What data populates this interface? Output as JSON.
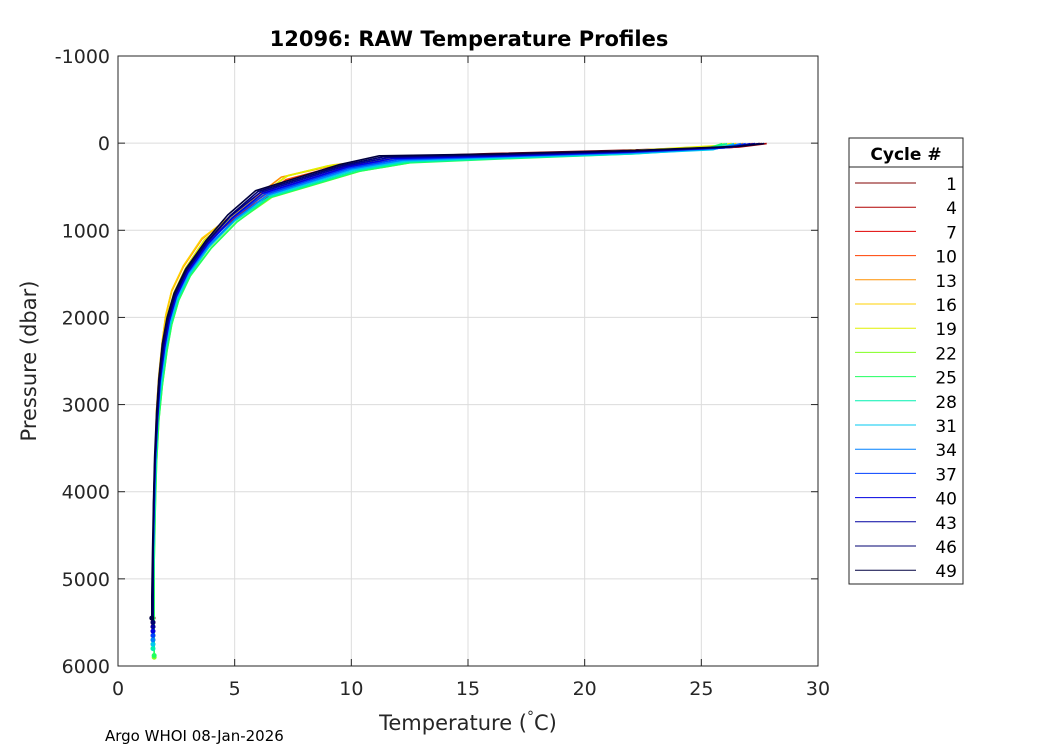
{
  "chart_data": {
    "type": "line",
    "title": "12096: RAW Temperature Profiles",
    "xlabel": "Temperature (°C)",
    "xlabel_parts": {
      "pre": "Temperature (",
      "deg": "°",
      "post": "C)"
    },
    "ylabel": "Pressure (dbar)",
    "xlim": [
      0,
      30
    ],
    "ylim": [
      -1000,
      6000
    ],
    "y_reversed": true,
    "grid": true,
    "x_ticks": [
      0,
      5,
      10,
      15,
      20,
      25,
      30
    ],
    "x_tick_labels": [
      "0",
      "5",
      "10",
      "15",
      "20",
      "25",
      "30"
    ],
    "y_ticks": [
      -1000,
      0,
      1000,
      2000,
      3000,
      4000,
      5000,
      6000
    ],
    "y_tick_labels": [
      "-1000",
      "0",
      "1000",
      "2000",
      "3000",
      "4000",
      "5000",
      "6000"
    ],
    "legend": {
      "title": "Cycle #",
      "placement": "outside-right",
      "entries": [
        {
          "label": "1",
          "color": "#800000"
        },
        {
          "label": "4",
          "color": "#b00000"
        },
        {
          "label": "7",
          "color": "#e00000"
        },
        {
          "label": "10",
          "color": "#ff4000"
        },
        {
          "label": "13",
          "color": "#ff9000"
        },
        {
          "label": "16",
          "color": "#ffd000"
        },
        {
          "label": "19",
          "color": "#e0f000"
        },
        {
          "label": "22",
          "color": "#80ff20"
        },
        {
          "label": "25",
          "color": "#20ff60"
        },
        {
          "label": "28",
          "color": "#00f0b0"
        },
        {
          "label": "31",
          "color": "#00c8f0"
        },
        {
          "label": "34",
          "color": "#0080ff"
        },
        {
          "label": "37",
          "color": "#0040ff"
        },
        {
          "label": "40",
          "color": "#0000e0"
        },
        {
          "label": "43",
          "color": "#0000a0"
        },
        {
          "label": "46",
          "color": "#000070"
        },
        {
          "label": "49",
          "color": "#000040"
        }
      ]
    },
    "series": [
      {
        "name": "1",
        "color": "#800000",
        "temp": [
          27.6,
          26.5,
          22,
          16,
          12.6,
          10,
          6.8,
          5.1,
          3.9,
          3.0,
          2.5,
          2.2,
          2.0,
          1.8,
          1.7,
          1.6,
          1.55,
          1.5,
          1.5,
          1.5
        ],
        "pressure": [
          5,
          40,
          80,
          120,
          150,
          260,
          550,
          830,
          1130,
          1450,
          1720,
          2000,
          2300,
          2700,
          3100,
          3600,
          4100,
          4700,
          5200,
          5450
        ]
      },
      {
        "name": "4",
        "color": "#b00000",
        "temp": [
          27.8,
          26.6,
          22,
          16,
          12.5,
          9.9,
          6.7,
          5.0,
          3.9,
          3.0,
          2.5,
          2.2,
          2.0,
          1.8,
          1.7,
          1.6,
          1.55,
          1.5,
          1.5,
          1.5
        ],
        "pressure": [
          5,
          45,
          85,
          125,
          155,
          265,
          560,
          840,
          1140,
          1460,
          1730,
          2010,
          2310,
          2710,
          3110,
          3610,
          4110,
          4710,
          5210,
          5500
        ]
      },
      {
        "name": "7",
        "color": "#e00000",
        "temp": [
          27.5,
          26.3,
          22,
          16,
          12.4,
          9.8,
          6.6,
          5.0,
          3.8,
          2.9,
          2.4,
          2.1,
          1.95,
          1.8,
          1.7,
          1.6,
          1.55,
          1.5,
          1.5,
          1.5
        ],
        "pressure": [
          5,
          50,
          90,
          130,
          160,
          270,
          570,
          850,
          1150,
          1470,
          1740,
          2020,
          2320,
          2720,
          3120,
          3620,
          4120,
          4720,
          5220,
          5550
        ]
      },
      {
        "name": "10",
        "color": "#ff4000",
        "temp": [
          27.2,
          26.2,
          22,
          16,
          12.3,
          9.5,
          7.2,
          5.0,
          3.8,
          2.9,
          2.4,
          2.1,
          1.95,
          1.8,
          1.7,
          1.6,
          1.55,
          1.5,
          1.5,
          1.5
        ],
        "pressure": [
          5,
          50,
          95,
          140,
          170,
          255,
          420,
          840,
          1140,
          1460,
          1730,
          2010,
          2310,
          2710,
          3110,
          3610,
          4110,
          4710,
          5210,
          5600
        ]
      },
      {
        "name": "13",
        "color": "#ff9000",
        "temp": [
          26.8,
          26.0,
          22,
          16,
          12.2,
          9.0,
          7.0,
          5.0,
          3.6,
          2.8,
          2.3,
          2.05,
          1.9,
          1.75,
          1.65,
          1.6,
          1.55,
          1.5,
          1.5,
          1.5
        ],
        "pressure": [
          5,
          40,
          90,
          140,
          170,
          270,
          390,
          800,
          1100,
          1420,
          1700,
          1980,
          2280,
          2680,
          3080,
          3580,
          4080,
          4680,
          5180,
          5650
        ]
      },
      {
        "name": "16",
        "color": "#ffd000",
        "temp": [
          26.5,
          25.8,
          22,
          16,
          12.1,
          9.2,
          7.3,
          5.1,
          3.6,
          2.8,
          2.3,
          2.05,
          1.9,
          1.75,
          1.65,
          1.6,
          1.55,
          1.5,
          1.5,
          1.5
        ],
        "pressure": [
          5,
          30,
          85,
          135,
          165,
          250,
          370,
          790,
          1090,
          1410,
          1690,
          1970,
          2270,
          2670,
          3070,
          3570,
          4070,
          4670,
          5170,
          5700
        ]
      },
      {
        "name": "19",
        "color": "#e0f000",
        "temp": [
          26.3,
          25.6,
          22,
          16,
          12.1,
          9.0,
          7.2,
          5.1,
          3.7,
          2.9,
          2.4,
          2.1,
          1.95,
          1.8,
          1.7,
          1.6,
          1.55,
          1.5,
          1.5,
          1.5
        ],
        "pressure": [
          5,
          30,
          85,
          140,
          175,
          260,
          380,
          810,
          1110,
          1430,
          1710,
          1990,
          2290,
          2690,
          3090,
          3590,
          4090,
          4690,
          5190,
          5750
        ]
      },
      {
        "name": "22",
        "color": "#80ff20",
        "temp": [
          26.0,
          25.4,
          22,
          16,
          12.6,
          10.4,
          6.6,
          5.1,
          4.0,
          3.1,
          2.6,
          2.3,
          2.1,
          1.9,
          1.75,
          1.65,
          1.6,
          1.55,
          1.55,
          1.55
        ],
        "pressure": [
          5,
          60,
          120,
          180,
          220,
          320,
          620,
          900,
          1200,
          1520,
          1800,
          2080,
          2380,
          2780,
          3180,
          3680,
          4180,
          4780,
          5280,
          5900
        ]
      },
      {
        "name": "25",
        "color": "#20ff60",
        "temp": [
          25.9,
          25.2,
          22,
          16,
          12.5,
          10.3,
          6.5,
          5.1,
          4.0,
          3.1,
          2.6,
          2.3,
          2.1,
          1.9,
          1.75,
          1.65,
          1.6,
          1.55,
          1.55,
          1.55
        ],
        "pressure": [
          5,
          65,
          125,
          185,
          225,
          325,
          625,
          905,
          1205,
          1525,
          1805,
          2085,
          2385,
          2785,
          3185,
          3685,
          4185,
          4785,
          5285,
          5880
        ]
      },
      {
        "name": "28",
        "color": "#00f0b0",
        "temp": [
          26.1,
          25.3,
          22,
          16,
          12.4,
          10.2,
          6.5,
          5.0,
          3.9,
          3.05,
          2.55,
          2.25,
          2.05,
          1.85,
          1.7,
          1.62,
          1.57,
          1.52,
          1.5,
          1.5
        ],
        "pressure": [
          5,
          70,
          125,
          180,
          215,
          315,
          615,
          895,
          1195,
          1515,
          1795,
          2075,
          2375,
          2775,
          3175,
          3675,
          4175,
          4775,
          5275,
          5800
        ]
      },
      {
        "name": "31",
        "color": "#00c8f0",
        "temp": [
          26.4,
          25.5,
          22,
          16,
          12.3,
          10.1,
          6.4,
          5.0,
          3.9,
          3.05,
          2.55,
          2.25,
          2.05,
          1.85,
          1.7,
          1.62,
          1.57,
          1.52,
          1.5,
          1.5
        ],
        "pressure": [
          5,
          75,
          120,
          170,
          205,
          305,
          605,
          885,
          1185,
          1505,
          1785,
          2065,
          2365,
          2765,
          3165,
          3665,
          4165,
          4765,
          5265,
          5750
        ]
      },
      {
        "name": "34",
        "color": "#0080ff",
        "temp": [
          26.7,
          25.7,
          22,
          16,
          12.2,
          10.0,
          6.4,
          5.0,
          3.9,
          3.0,
          2.5,
          2.2,
          2.0,
          1.8,
          1.7,
          1.6,
          1.55,
          1.5,
          1.5,
          1.5
        ],
        "pressure": [
          5,
          60,
          110,
          160,
          195,
          295,
          595,
          875,
          1175,
          1495,
          1775,
          2055,
          2355,
          2755,
          3155,
          3655,
          4155,
          4755,
          5255,
          5700
        ]
      },
      {
        "name": "37",
        "color": "#0040ff",
        "temp": [
          26.9,
          26.0,
          22,
          16,
          12.0,
          9.9,
          6.3,
          4.9,
          3.85,
          3.0,
          2.5,
          2.2,
          2.0,
          1.8,
          1.7,
          1.6,
          1.55,
          1.5,
          1.5,
          1.5
        ],
        "pressure": [
          5,
          55,
          105,
          155,
          185,
          285,
          585,
          865,
          1165,
          1485,
          1765,
          2045,
          2345,
          2745,
          3145,
          3645,
          4145,
          4745,
          5245,
          5650
        ]
      },
      {
        "name": "40",
        "color": "#0000e0",
        "temp": [
          27.1,
          26.2,
          22,
          16,
          11.8,
          9.8,
          6.2,
          4.9,
          3.85,
          3.0,
          2.5,
          2.2,
          2.0,
          1.8,
          1.7,
          1.6,
          1.55,
          1.5,
          1.5,
          1.5
        ],
        "pressure": [
          5,
          50,
          100,
          150,
          175,
          275,
          575,
          855,
          1155,
          1475,
          1755,
          2035,
          2335,
          2735,
          3135,
          3635,
          4135,
          4735,
          5235,
          5600
        ]
      },
      {
        "name": "43",
        "color": "#0000a0",
        "temp": [
          27.3,
          26.3,
          22,
          16,
          11.6,
          9.7,
          6.1,
          4.8,
          3.8,
          2.95,
          2.45,
          2.15,
          1.95,
          1.78,
          1.68,
          1.58,
          1.53,
          1.5,
          1.5,
          1.5
        ],
        "pressure": [
          5,
          45,
          95,
          140,
          165,
          265,
          565,
          845,
          1145,
          1465,
          1745,
          2025,
          2325,
          2725,
          3125,
          3625,
          4125,
          4725,
          5225,
          5550
        ]
      },
      {
        "name": "46",
        "color": "#000070",
        "temp": [
          27.5,
          26.5,
          22,
          16,
          11.4,
          9.6,
          6.0,
          4.8,
          3.8,
          2.95,
          2.45,
          2.15,
          1.95,
          1.78,
          1.68,
          1.58,
          1.53,
          1.5,
          1.5,
          1.5
        ],
        "pressure": [
          5,
          40,
          90,
          130,
          155,
          255,
          555,
          835,
          1135,
          1455,
          1735,
          2015,
          2315,
          2715,
          3115,
          3615,
          4115,
          4715,
          5215,
          5500
        ]
      },
      {
        "name": "49",
        "color": "#000040",
        "temp": [
          27.7,
          26.7,
          22,
          16,
          11.2,
          9.5,
          5.9,
          4.7,
          3.75,
          2.9,
          2.4,
          2.1,
          1.9,
          1.75,
          1.65,
          1.57,
          1.52,
          1.48,
          1.45,
          1.45
        ],
        "pressure": [
          5,
          35,
          85,
          125,
          145,
          245,
          545,
          825,
          1125,
          1445,
          1725,
          2005,
          2305,
          2705,
          3105,
          3605,
          4105,
          4705,
          5205,
          5450
        ]
      }
    ]
  },
  "footer": {
    "text": "Argo WHOI 08-Jan-2026"
  }
}
